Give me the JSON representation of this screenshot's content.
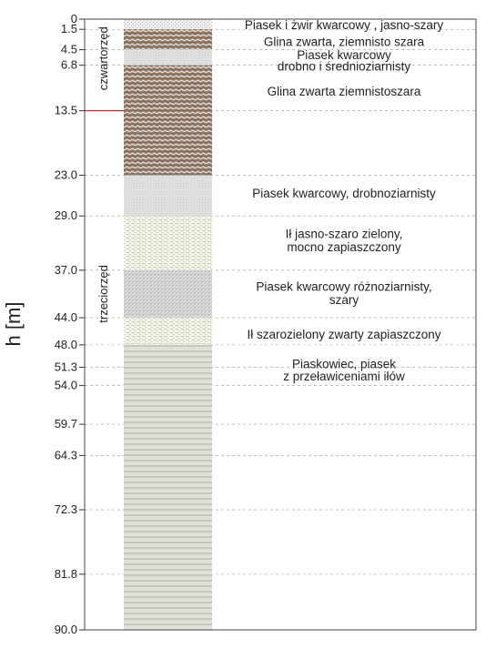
{
  "chart_data": {
    "type": "geologic-column",
    "ylabel": "h [m]",
    "ylim": [
      0,
      90
    ],
    "y_inverted": true,
    "ticks": [
      0,
      1.5,
      4.5,
      6.8,
      13.5,
      23.0,
      29.0,
      37.0,
      44.0,
      48.0,
      51.3,
      54.0,
      59.7,
      64.3,
      72.3,
      81.8,
      90.0
    ],
    "tick_labels": [
      "0",
      "1.5",
      "4.5",
      "6.8",
      "13.5",
      "23.0",
      "29.0",
      "37.0",
      "44.0",
      "48.0",
      "51.3",
      "54.0",
      "59.7",
      "64.3",
      "72.3",
      "81.8",
      "90.0"
    ],
    "grid": "dashed-horizontal",
    "periods": [
      {
        "name": "czwartorzęd",
        "from": 0,
        "to": 13.5,
        "label_mid": 5.8
      },
      {
        "name": "trzeciorzęd",
        "from": 13.5,
        "to": 90,
        "label_mid": 40.5
      }
    ],
    "period_boundary": 13.5,
    "layers": [
      {
        "top": 0,
        "bottom": 1.5,
        "pattern": "sand",
        "label_at": [
          0.8
        ],
        "lines": [
          "Piasek i żwir kwarcowy , jasno-szary"
        ]
      },
      {
        "top": 1.5,
        "bottom": 4.5,
        "pattern": "clay",
        "label_at": [
          3.3
        ],
        "lines": [
          "Glina zwarta, ziemnisto szara"
        ]
      },
      {
        "top": 4.5,
        "bottom": 6.8,
        "pattern": "sand-fine",
        "label_at": [
          5.2,
          6.9
        ],
        "lines": [
          "Piasek kwarcowy",
          "drobno i średnioziarnisty"
        ]
      },
      {
        "top": 6.8,
        "bottom": 23.0,
        "pattern": "clay",
        "label_at": [
          10.6
        ],
        "lines": [
          "Glina zwarta ziemnistoszara"
        ]
      },
      {
        "top": 23.0,
        "bottom": 29.0,
        "pattern": "sand-fine",
        "label_at": [
          25.6
        ],
        "lines": [
          "Piasek kwarcowy, drobnoziarnisty"
        ]
      },
      {
        "top": 29.0,
        "bottom": 37.0,
        "pattern": "silt",
        "label_at": [
          31.6,
          33.5
        ],
        "lines": [
          "Ił jasno-szaro zielony,",
          "mocno zapiaszczony"
        ]
      },
      {
        "top": 37.0,
        "bottom": 44.0,
        "pattern": "sand-mixed",
        "label_at": [
          39.4,
          41.3
        ],
        "lines": [
          "Piasek kwarcowy różnoziarnisty,",
          "szary"
        ]
      },
      {
        "top": 44.0,
        "bottom": 48.0,
        "pattern": "silt",
        "label_at": [
          46.4
        ],
        "lines": [
          "Ił szarozielony zwarty zapiaszczony"
        ]
      },
      {
        "top": 48.0,
        "bottom": 90.0,
        "pattern": "sandstone",
        "label_at": [
          50.8,
          52.6
        ],
        "lines": [
          "Piaskowiec, piasek",
          "z przeławiceniami iłów"
        ]
      }
    ]
  }
}
